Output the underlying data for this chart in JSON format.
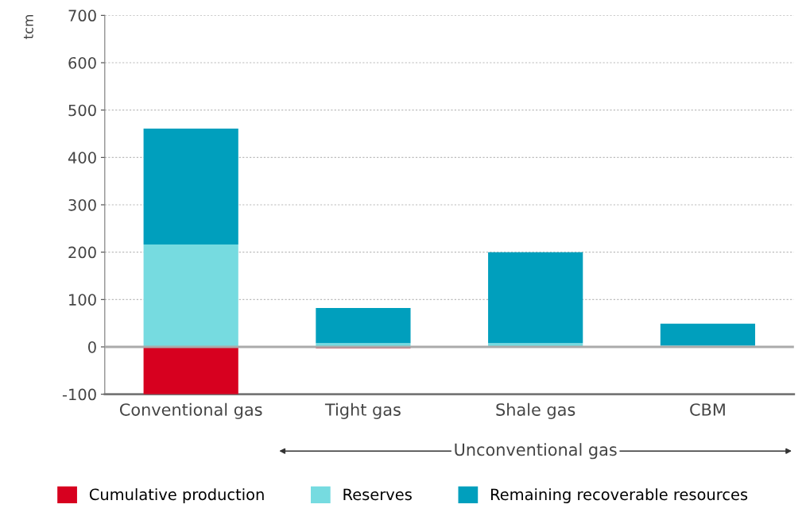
{
  "chart_data": {
    "type": "bar",
    "stacked": true,
    "ylabel": "tcm",
    "categories": [
      "Conventional gas",
      "Tight gas",
      "Shale gas",
      "CBM"
    ],
    "series": [
      {
        "name": "Cumulative production",
        "color": "#d7001f",
        "values": [
          -100,
          -3,
          null,
          null
        ]
      },
      {
        "name": "Reserves",
        "color": "#76dbe0",
        "values": [
          216,
          8,
          8,
          3
        ]
      },
      {
        "name": "Remaining recoverable resources",
        "color": "#009fbd",
        "values": [
          245,
          74,
          192,
          46
        ]
      }
    ],
    "ylim": [
      -100,
      700
    ],
    "yticks": [
      -100,
      0,
      100,
      200,
      300,
      400,
      500,
      600,
      700
    ],
    "grid": "y",
    "legend": "bottom",
    "annotations": [
      "Unconventional gas"
    ]
  }
}
